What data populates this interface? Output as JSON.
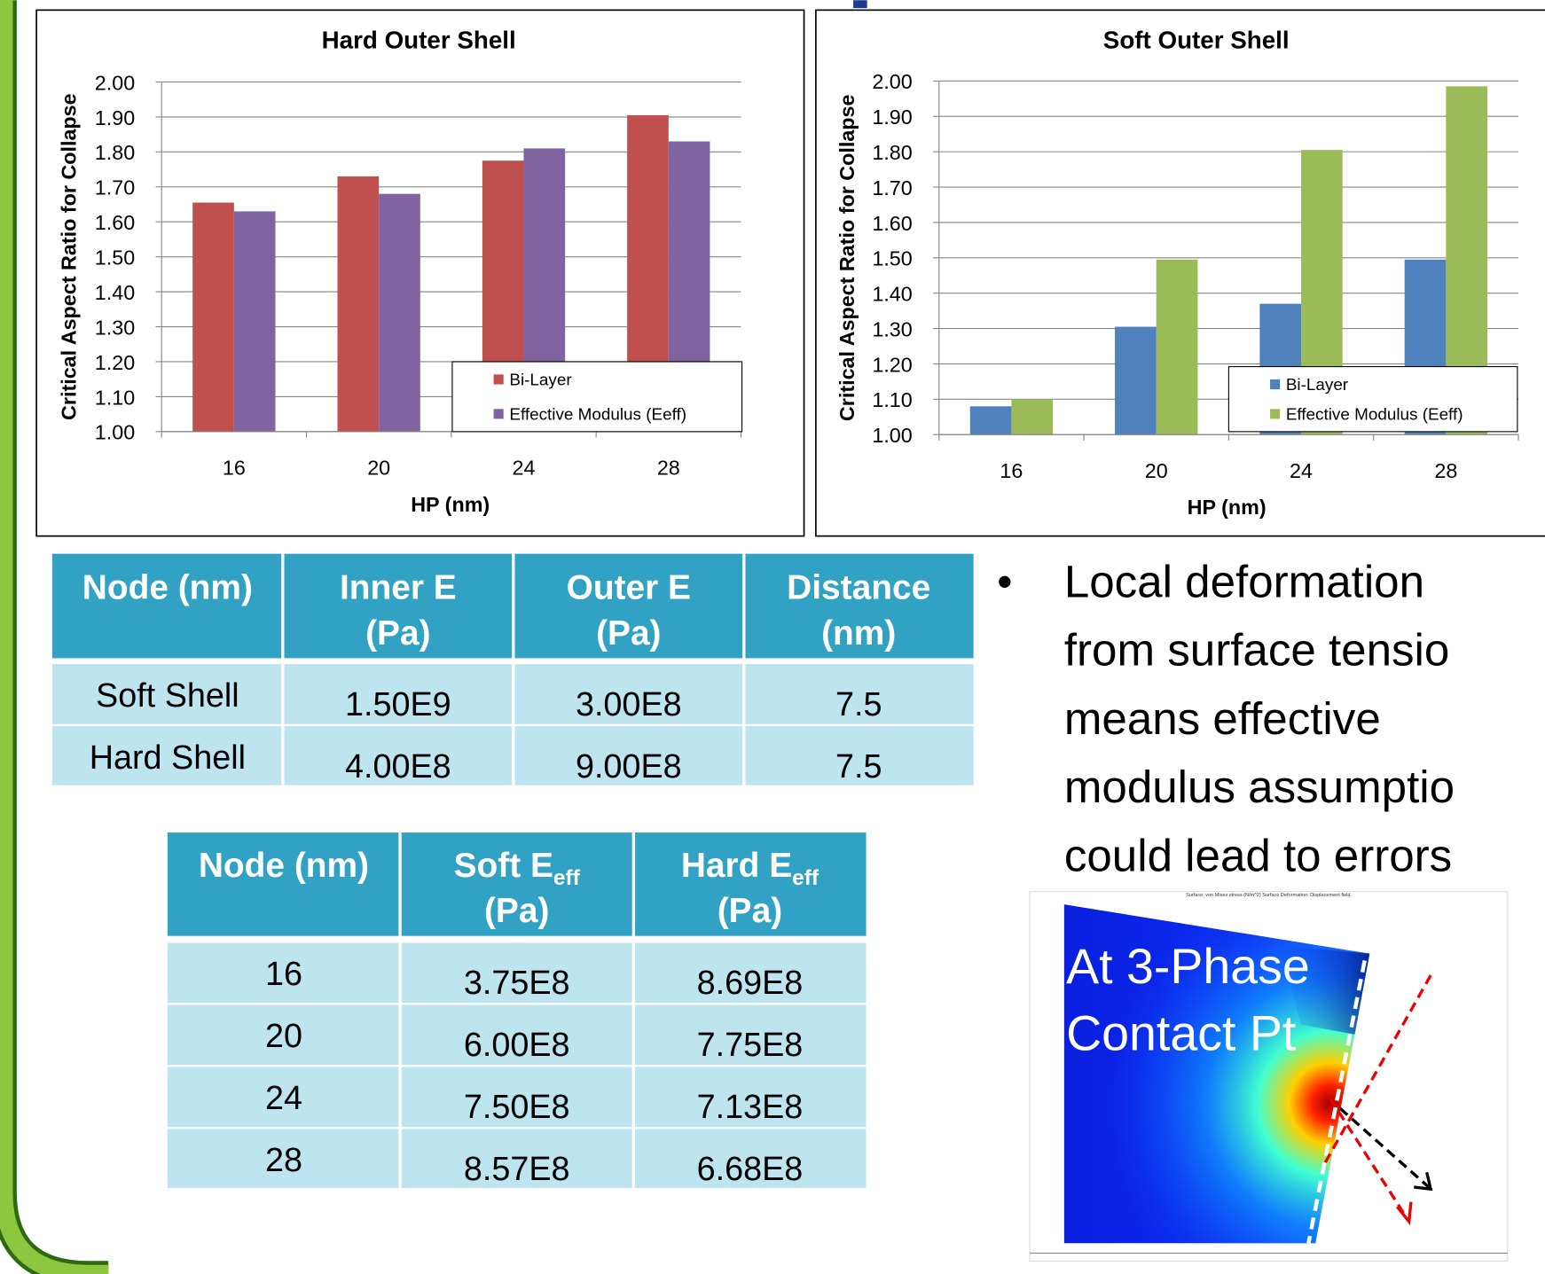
{
  "chart_data": [
    {
      "type": "bar",
      "title": "Hard Outer Shell",
      "x_label": "HP (nm)",
      "y_label": "Critical Aspect Ratio for Collapse",
      "categories": [
        "16",
        "20",
        "24",
        "28"
      ],
      "series": [
        {
          "name": "Bi-Layer",
          "color": "#c0504d",
          "values": [
            1.655,
            1.73,
            1.775,
            1.905
          ]
        },
        {
          "name": "Effective Modulus (Eeff)",
          "color": "#8064a2",
          "values": [
            1.63,
            1.68,
            1.81,
            1.83
          ]
        }
      ],
      "ylim": [
        1,
        2
      ],
      "yticks": [
        {
          "value": 1,
          "label": "1.00"
        },
        {
          "value": 1.1,
          "label": "1.10"
        },
        {
          "value": 1.2,
          "label": "1.20"
        },
        {
          "value": 1.3,
          "label": "1.30"
        },
        {
          "value": 1.4,
          "label": "1.40"
        },
        {
          "value": 1.5,
          "label": "1.50"
        },
        {
          "value": 1.6,
          "label": "1.60"
        },
        {
          "value": 1.7,
          "label": "1.70"
        },
        {
          "value": 1.8,
          "label": "1.80"
        },
        {
          "value": 1.9,
          "label": "1.90"
        },
        {
          "value": 2,
          "label": "2.00"
        }
      ],
      "grid": true,
      "legend": "lower-right"
    },
    {
      "type": "bar",
      "title": "Soft Outer Shell",
      "x_label": "HP (nm)",
      "y_label": "Critical Aspect Ratio for Collapse",
      "categories": [
        "16",
        "20",
        "24",
        "28"
      ],
      "series": [
        {
          "name": "Bi-Layer",
          "color": "#4f81bd",
          "values": [
            1.08,
            1.305,
            1.37,
            1.495
          ]
        },
        {
          "name": "Effective Modulus (Eeff)",
          "color": "#9bbb59",
          "values": [
            1.1,
            1.495,
            1.805,
            1.985
          ]
        }
      ],
      "ylim": [
        1,
        2
      ],
      "yticks": [
        {
          "value": 1,
          "label": "1.00"
        },
        {
          "value": 1.1,
          "label": "1.10"
        },
        {
          "value": 1.2,
          "label": "1.20"
        },
        {
          "value": 1.3,
          "label": "1.30"
        },
        {
          "value": 1.4,
          "label": "1.40"
        },
        {
          "value": 1.5,
          "label": "1.50"
        },
        {
          "value": 1.6,
          "label": "1.60"
        },
        {
          "value": 1.7,
          "label": "1.70"
        },
        {
          "value": 1.8,
          "label": "1.80"
        },
        {
          "value": 1.9,
          "label": "1.90"
        },
        {
          "value": 2,
          "label": "2.00"
        }
      ],
      "grid": true,
      "legend": "lower-right"
    }
  ],
  "table_1": {
    "header": [
      [
        "Node (nm)"
      ],
      [
        "Inner E",
        "(Pa)"
      ],
      [
        "Outer E",
        "(Pa)"
      ],
      [
        "Distance",
        "(nm)"
      ]
    ],
    "rows": [
      [
        "Soft Shell",
        "1.50E9",
        "3.00E8",
        "7.5"
      ],
      [
        "Hard Shell",
        "4.00E8",
        "9.00E8",
        "7.5"
      ]
    ]
  },
  "table_2": {
    "header": [
      {
        "main": "Node (nm)"
      },
      {
        "main": "Soft E",
        "sub": "eff",
        "unit": "(Pa)"
      },
      {
        "main": "Hard E",
        "sub": "eff",
        "unit": "(Pa)"
      }
    ],
    "rows": [
      [
        "16",
        "3.75E8",
        "8.69E8"
      ],
      [
        "20",
        "6.00E8",
        "7.75E8"
      ],
      [
        "24",
        "7.50E8",
        "7.13E8"
      ],
      [
        "28",
        "8.57E8",
        "6.68E8"
      ]
    ]
  },
  "bullet": {
    "lines": [
      "Local deformation",
      "from surface tensio",
      "means effective",
      "modulus assumptio",
      "could lead to errors"
    ]
  },
  "figure": {
    "title": "Surface: von Mises stress (N/m^2)   Surface Deformation: Displacement field",
    "label_lines": [
      "At 3-Phase",
      "Contact Pt"
    ]
  }
}
